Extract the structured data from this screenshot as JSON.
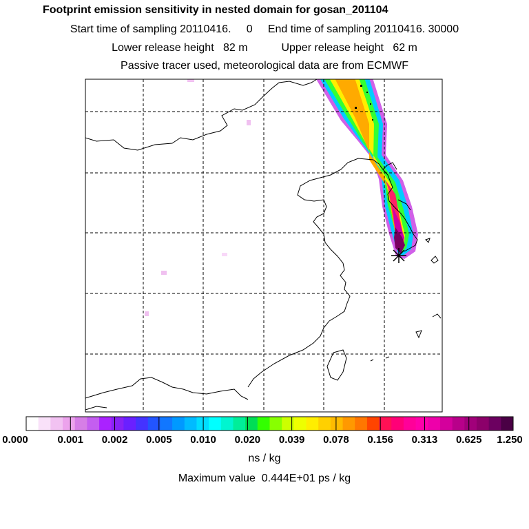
{
  "header": {
    "title": "Footprint emission sensitivity in nested domain for gosan_201104",
    "line2": "Start time of sampling 20110416.     0     End time of sampling 20110416. 30000",
    "line3": "Lower release height   82 m           Upper release height   62 m",
    "line4": "Passive tracer used, meteorological data are from ECMWF"
  },
  "colorbar": {
    "labels": [
      "0.000",
      "0.001",
      "0.002",
      "0.005",
      "0.010",
      "0.020",
      "0.039",
      "0.078",
      "0.156",
      "0.313",
      "0.625",
      "1.250"
    ],
    "colors": [
      "#ffffff",
      "#f9e1f9",
      "#f2c2f2",
      "#eca3ec",
      "#d67ee6",
      "#c45ef0",
      "#aa22ff",
      "#8822f5",
      "#6a20ff",
      "#4433ff",
      "#2255ff",
      "#1177ff",
      "#0099ff",
      "#00bbff",
      "#00ddff",
      "#00ffff",
      "#00f5d0",
      "#00ee99",
      "#00dd55",
      "#33ff00",
      "#88ff00",
      "#ccff00",
      "#eeff00",
      "#ffee00",
      "#ffd000",
      "#ffbb00",
      "#ff9900",
      "#ff7700",
      "#ff4400",
      "#ff1155",
      "#ff0077",
      "#ff0099",
      "#ff00aa",
      "#ee00aa",
      "#d4009c",
      "#b8008a",
      "#a1007a",
      "#8c006a",
      "#6c0060",
      "#4a0045"
    ],
    "units": "ns / kg"
  },
  "footer": {
    "max_value": "Maximum value  0.444E+01 ps / kg"
  },
  "map": {
    "station_marker": "asterisk-icon"
  }
}
